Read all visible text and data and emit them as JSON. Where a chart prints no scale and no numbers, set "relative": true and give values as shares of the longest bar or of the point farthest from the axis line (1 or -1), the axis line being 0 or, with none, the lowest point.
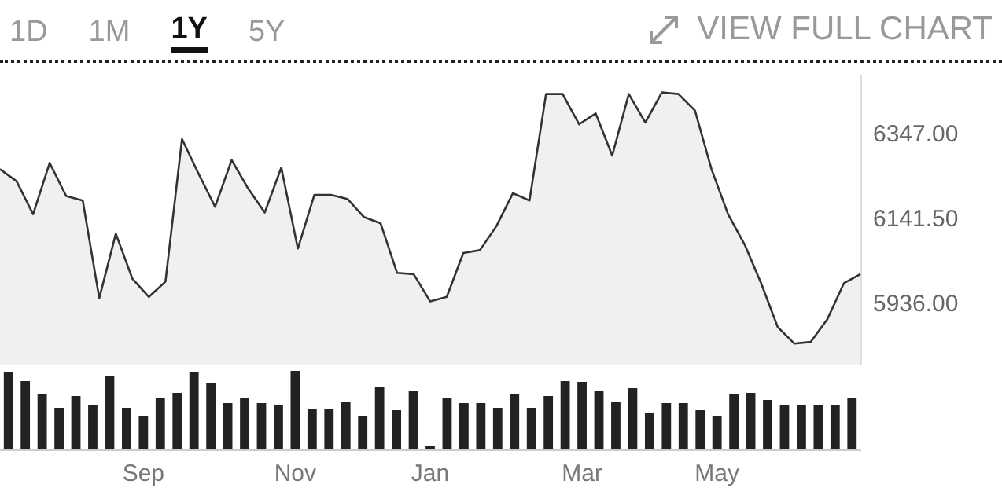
{
  "chart_data": [
    {
      "type": "area",
      "annotations": [
        "1D",
        "1M",
        "1Y",
        "5Y",
        "VIEW FULL CHART"
      ],
      "tick_labels": "y",
      "marker": "none",
      "color": "#333333",
      "categories": [
        null,
        null,
        null,
        null,
        null,
        null,
        null,
        null,
        null,
        null,
        null,
        null,
        null,
        null,
        null,
        null,
        null,
        null,
        null,
        null,
        null,
        null,
        null,
        null,
        null,
        null,
        null,
        null,
        null,
        null,
        null,
        null,
        null,
        null,
        null,
        null,
        null,
        null,
        null,
        null,
        null,
        null,
        null,
        null,
        null,
        null,
        null,
        null,
        null,
        null,
        null,
        null,
        null
      ],
      "values": [
        6263,
        6234,
        6154,
        6278,
        6198,
        6187,
        5951,
        6107,
        5998,
        5954,
        5991,
        6336,
        6252,
        6172,
        6285,
        6216,
        6158,
        6267,
        6071,
        6201,
        6201,
        6191,
        6147,
        6132,
        6012,
        6009,
        5943,
        5954,
        6060,
        6067,
        6125,
        6205,
        6187,
        6445,
        6445,
        6372,
        6398,
        6296,
        6445,
        6376,
        6449,
        6445,
        6405,
        6263,
        6154,
        6081,
        5987,
        5881,
        5841,
        5845,
        5900,
        5987,
        6009
      ],
      "ylim": [
        5790,
        6490
      ],
      "yticks": [
        {
          "value": 5936,
          "label": "5936.00"
        },
        {
          "value": 6141.5,
          "label": "6141.50"
        },
        {
          "value": 6347,
          "label": "6347.00"
        }
      ]
    },
    {
      "type": "bar",
      "relative": true,
      "color": "#222222",
      "categories": [
        null,
        null,
        null,
        null,
        null,
        null,
        null,
        null,
        "Sep",
        null,
        null,
        null,
        null,
        null,
        null,
        null,
        null,
        "Nov",
        null,
        null,
        null,
        null,
        null,
        null,
        null,
        "Jan",
        null,
        null,
        null,
        null,
        null,
        null,
        null,
        null,
        "Mar",
        null,
        null,
        null,
        null,
        null,
        null,
        null,
        "May",
        null,
        null,
        null,
        null,
        null,
        null,
        null,
        null
      ],
      "values": [
        0.98,
        0.87,
        0.7,
        0.53,
        0.68,
        0.56,
        0.93,
        0.53,
        0.42,
        0.65,
        0.72,
        0.98,
        0.84,
        0.59,
        0.65,
        0.59,
        0.56,
        1,
        0.51,
        0.51,
        0.61,
        0.42,
        0.79,
        0.5,
        0.75,
        0.05,
        0.65,
        0.59,
        0.59,
        0.53,
        0.7,
        0.53,
        0.68,
        0.87,
        0.86,
        0.75,
        0.61,
        0.78,
        0.47,
        0.59,
        0.59,
        0.5,
        0.42,
        0.7,
        0.72,
        0.63,
        0.56,
        0.56,
        0.56,
        0.56,
        0.65
      ]
    }
  ]
}
